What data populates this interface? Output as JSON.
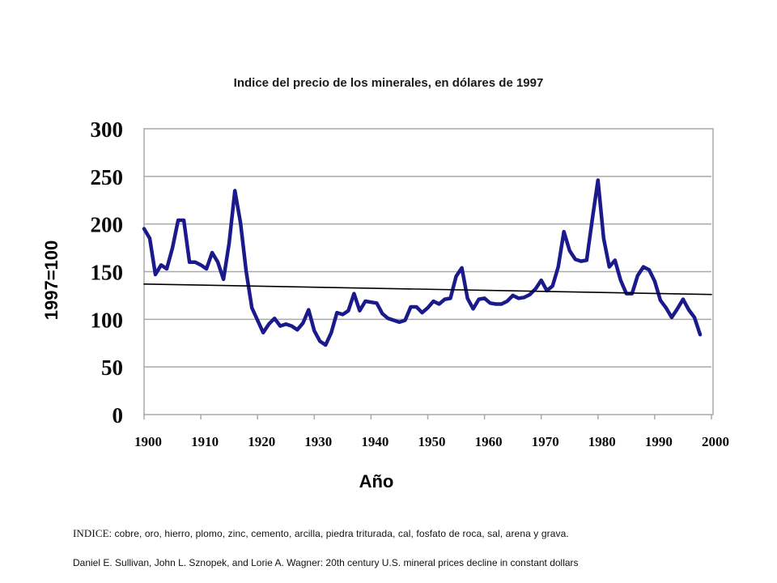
{
  "chart_data": {
    "type": "line",
    "title": "Indice del precio de los minerales, en dólares de 1997",
    "ylabel": "1997=100",
    "xlabel": "Año",
    "xlim": [
      1900,
      2000
    ],
    "ylim": [
      0,
      300
    ],
    "xticks": [
      "1900",
      "1910",
      "1920",
      "1930",
      "1940",
      "1950",
      "1960",
      "1970",
      "1980",
      "1990",
      "2000"
    ],
    "yticks": [
      "0",
      "50",
      "100",
      "150",
      "200",
      "250",
      "300"
    ],
    "grid": "horizontal",
    "series": [
      {
        "color": "#1a1a8c",
        "x": [
          1900,
          1901,
          1902,
          1903,
          1904,
          1905,
          1906,
          1907,
          1908,
          1909,
          1910,
          1911,
          1912,
          1913,
          1914,
          1915,
          1916,
          1917,
          1918,
          1919,
          1920,
          1921,
          1922,
          1923,
          1924,
          1925,
          1926,
          1927,
          1928,
          1929,
          1930,
          1931,
          1932,
          1933,
          1934,
          1935,
          1936,
          1937,
          1938,
          1939,
          1940,
          1941,
          1942,
          1943,
          1944,
          1945,
          1946,
          1947,
          1948,
          1949,
          1950,
          1951,
          1952,
          1953,
          1954,
          1955,
          1956,
          1957,
          1958,
          1959,
          1960,
          1961,
          1962,
          1963,
          1964,
          1965,
          1966,
          1967,
          1968,
          1969,
          1970,
          1971,
          1972,
          1973,
          1974,
          1975,
          1976,
          1977,
          1978,
          1979,
          1980,
          1981,
          1982,
          1983,
          1984,
          1985,
          1986,
          1987,
          1988,
          1989,
          1990,
          1991,
          1992,
          1993,
          1994,
          1995,
          1996,
          1997,
          1998
        ],
        "values": [
          195,
          185,
          147,
          157,
          153,
          175,
          204,
          204,
          160,
          160,
          157,
          153,
          170,
          160,
          142,
          180,
          235,
          201,
          150,
          112,
          99,
          86,
          95,
          101,
          93,
          95,
          93,
          89,
          96,
          110,
          88,
          77,
          73,
          86,
          107,
          105,
          109,
          127,
          109,
          119,
          118,
          117,
          106,
          101,
          99,
          97,
          99,
          113,
          113,
          107,
          112,
          119,
          116,
          121,
          122,
          145,
          154,
          122,
          111,
          121,
          122,
          117,
          116,
          116,
          119,
          125,
          122,
          123,
          126,
          132,
          141,
          130,
          135,
          155,
          192,
          172,
          163,
          161,
          162,
          205,
          246,
          185,
          155,
          162,
          141,
          127,
          127,
          146,
          155,
          152,
          140,
          120,
          112,
          102,
          111,
          121,
          110,
          102,
          84
        ]
      },
      {
        "name": "",
        "color": "#000000",
        "x": [
          1900,
          2000
        ],
        "values": [
          137,
          126
        ]
      }
    ]
  },
  "footnote": {
    "lead": "INDICE",
    "text": ": cobre, oro, hierro, plomo, zinc, cemento, arcilla, piedra triturada, cal, fosfato de roca, sal, arena y grava."
  },
  "source": "Daniel E. Sullivan, John L. Sznopek,  and Lorie A. Wagner: 20th century U.S. mineral prices decline in constant dollars"
}
